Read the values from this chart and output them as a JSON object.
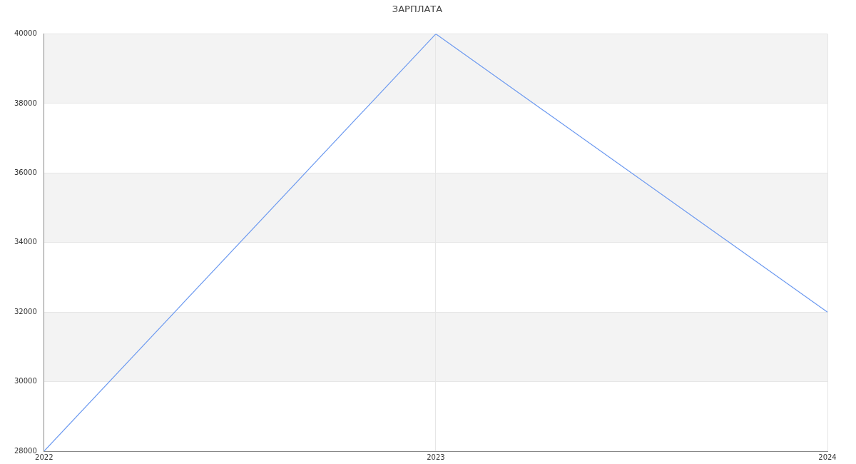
{
  "chart_data": {
    "type": "line",
    "title": "ЗАРПЛАТА",
    "x": [
      2022,
      2023,
      2024
    ],
    "series": [
      {
        "color": "#6d9af0",
        "values": [
          28000,
          40000,
          32000
        ]
      }
    ],
    "xlim": [
      2022,
      2024
    ],
    "xticks": [
      2022,
      2023,
      2024
    ],
    "ylim": [
      28000,
      40000
    ],
    "yticks": [
      28000,
      30000,
      32000,
      34000,
      36000,
      38000,
      40000
    ],
    "grid": true,
    "legend": false,
    "marker": "none",
    "line_style": "solid"
  }
}
